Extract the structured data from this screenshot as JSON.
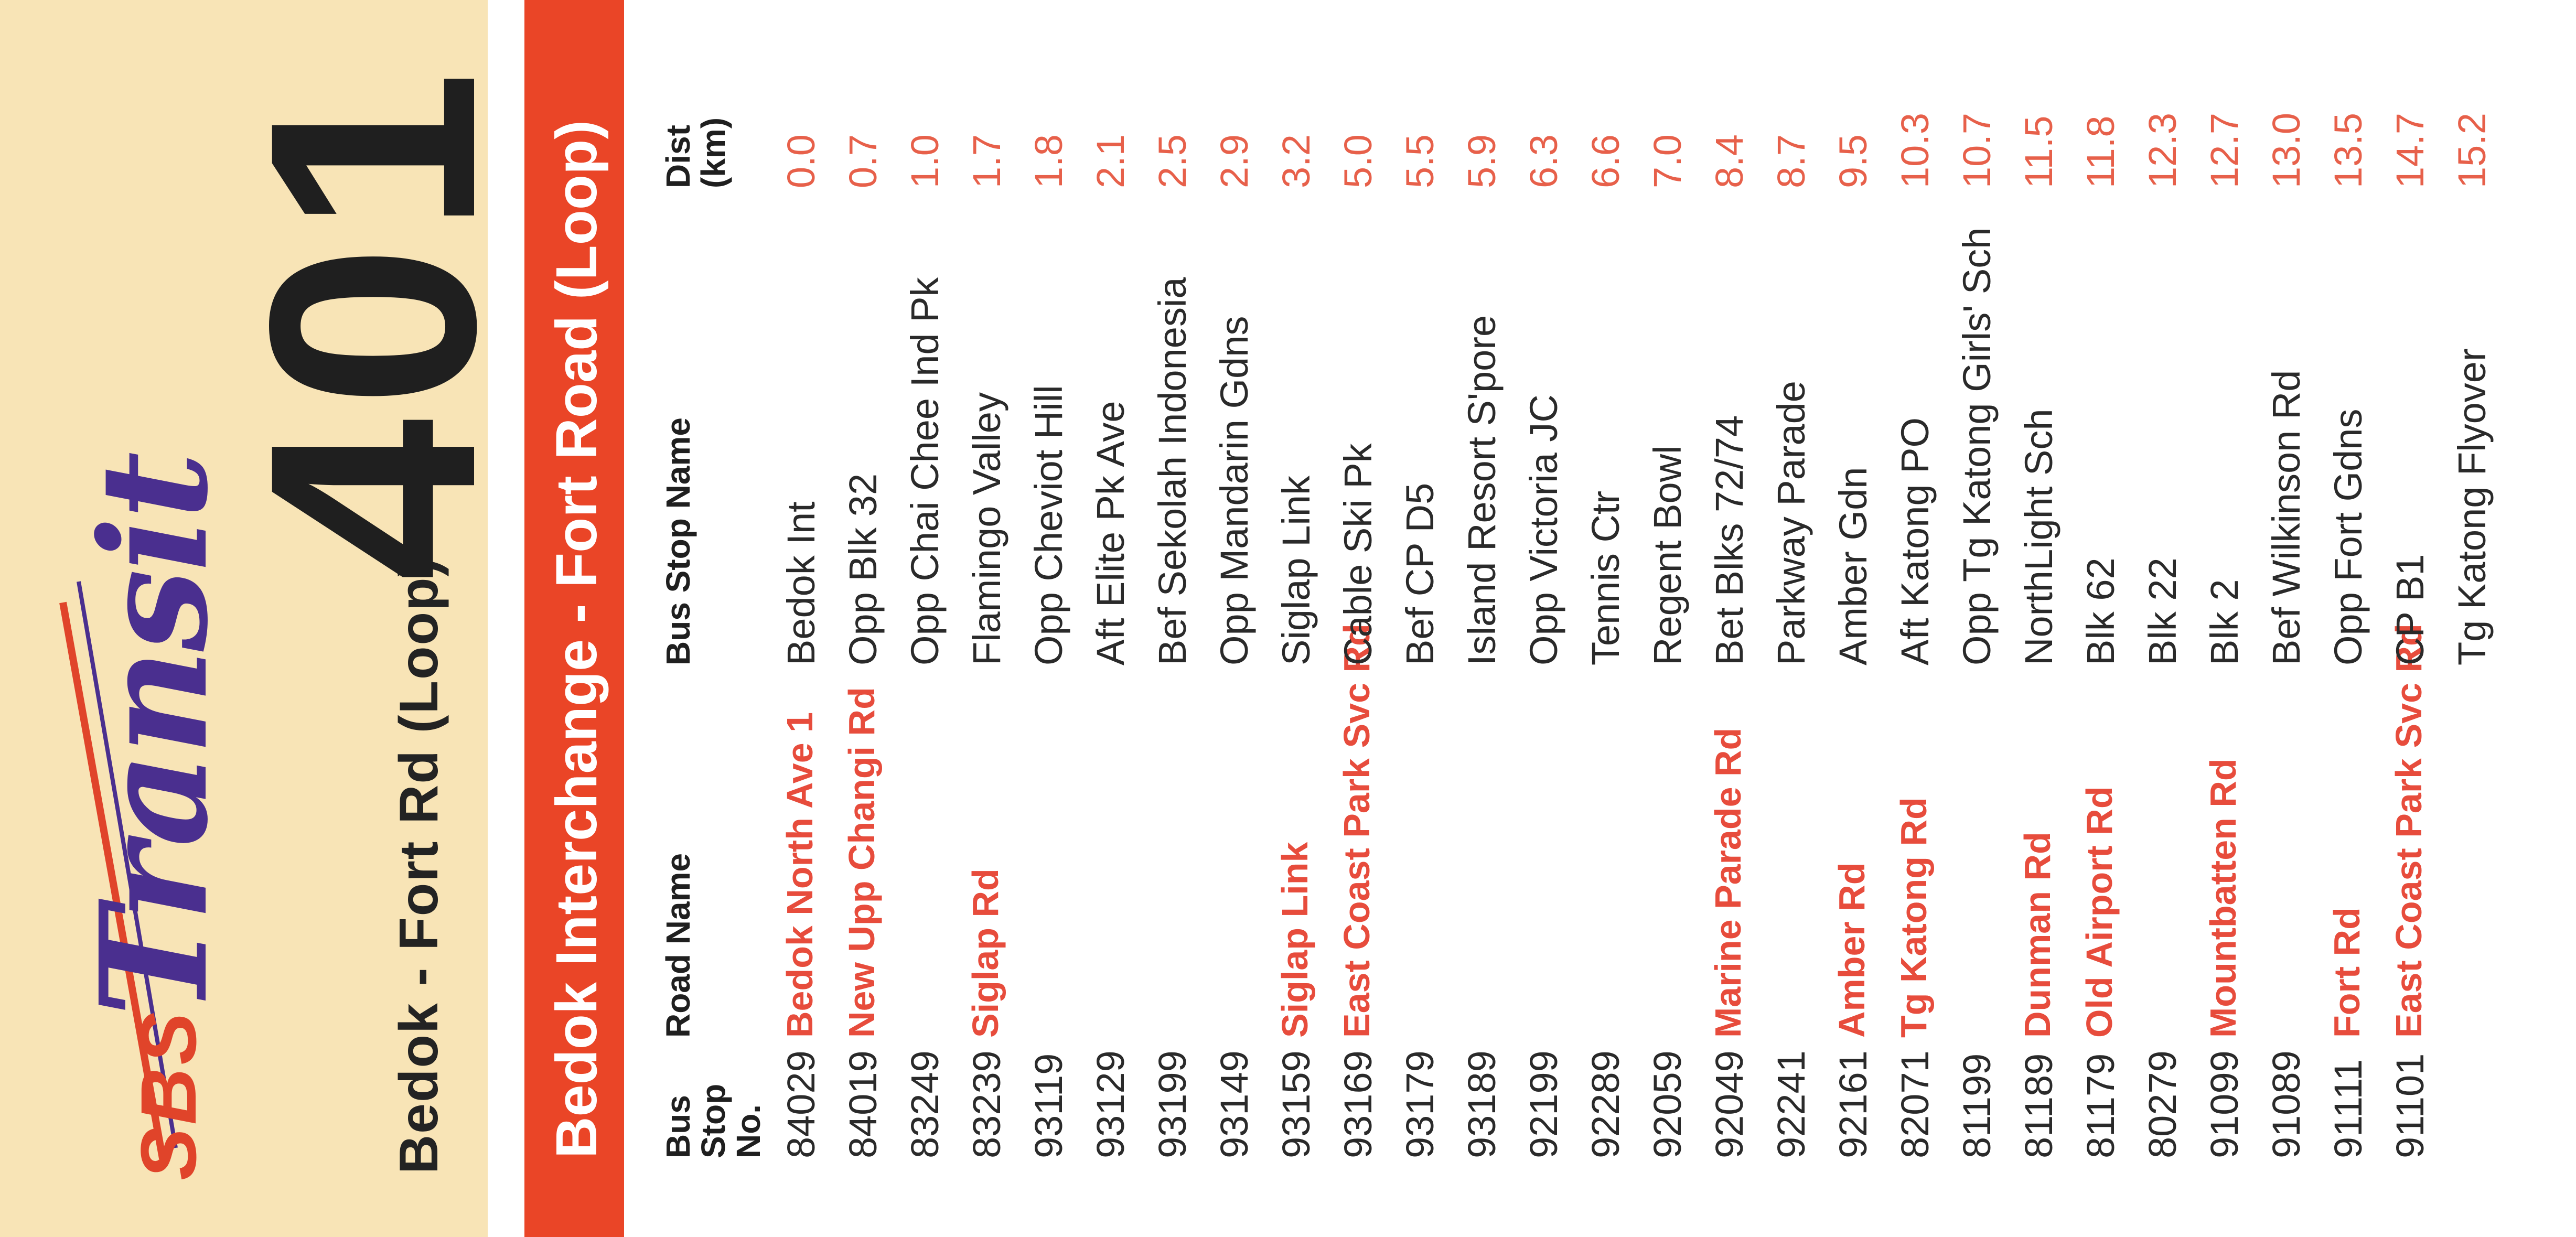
{
  "brand": {
    "sbs": "SBS",
    "transit": "Transit"
  },
  "route": {
    "name": "Bedok - Fort Rd (Loop)",
    "number": "401"
  },
  "banner": {
    "title": "Bedok Interchange - Fort Road (Loop)"
  },
  "table": {
    "headers": {
      "stop_no": "Bus Stop No.",
      "road": "Road Name",
      "stop_name": "Bus Stop Name",
      "dist": "Dist (km)"
    },
    "rows": [
      {
        "no": "84029",
        "road": "Bedok North Ave 1",
        "name": "Bedok Int",
        "dist": "0.0"
      },
      {
        "no": "84019",
        "road": "New Upp Changi Rd",
        "name": "Opp Blk 32",
        "dist": "0.7"
      },
      {
        "no": "83249",
        "road": "",
        "name": "Opp Chai Chee Ind Pk",
        "dist": "1.0"
      },
      {
        "no": "83239",
        "road": "Siglap Rd",
        "name": "Flamingo Valley",
        "dist": "1.7"
      },
      {
        "no": "93119",
        "road": "",
        "name": "Opp Cheviot Hill",
        "dist": "1.8"
      },
      {
        "no": "93129",
        "road": "",
        "name": "Aft Elite Pk Ave",
        "dist": "2.1"
      },
      {
        "no": "93199",
        "road": "",
        "name": "Bef Sekolah Indonesia",
        "dist": "2.5"
      },
      {
        "no": "93149",
        "road": "",
        "name": "Opp Mandarin Gdns",
        "dist": "2.9"
      },
      {
        "no": "93159",
        "road": "Siglap Link",
        "name": "Siglap Link",
        "dist": "3.2"
      },
      {
        "no": "93169",
        "road": "East Coast Park Svc Rd",
        "name": "Cable Ski Pk",
        "dist": "5.0"
      },
      {
        "no": "93179",
        "road": "",
        "name": "Bef CP D5",
        "dist": "5.5"
      },
      {
        "no": "93189",
        "road": "",
        "name": "Island Resort S'pore",
        "dist": "5.9"
      },
      {
        "no": "92199",
        "road": "",
        "name": "Opp Victoria JC",
        "dist": "6.3"
      },
      {
        "no": "92289",
        "road": "",
        "name": "Tennis Ctr",
        "dist": "6.6"
      },
      {
        "no": "92059",
        "road": "",
        "name": "Regent Bowl",
        "dist": "7.0"
      },
      {
        "no": "92049",
        "road": "Marine Parade Rd",
        "name": "Bet Blks 72/74",
        "dist": "8.4"
      },
      {
        "no": "92241",
        "road": "",
        "name": "Parkway Parade",
        "dist": "8.7"
      },
      {
        "no": "92161",
        "road": "Amber Rd",
        "name": "Amber Gdn",
        "dist": "9.5"
      },
      {
        "no": "82071",
        "road": "Tg Katong Rd",
        "name": "Aft Katong PO",
        "dist": "10.3"
      },
      {
        "no": "81199",
        "road": "",
        "name": "Opp Tg Katong Girls' Sch",
        "dist": "10.7"
      },
      {
        "no": "81189",
        "road": "Dunman Rd",
        "name": "NorthLight Sch",
        "dist": "11.5"
      },
      {
        "no": "81179",
        "road": "Old Airport Rd",
        "name": "Blk 62",
        "dist": "11.8"
      },
      {
        "no": "80279",
        "road": "",
        "name": "Blk 22",
        "dist": "12.3"
      },
      {
        "no": "91099",
        "road": "Mountbatten Rd",
        "name": "Blk 2",
        "dist": "12.7"
      },
      {
        "no": "91089",
        "road": "",
        "name": "Bef Wilkinson Rd",
        "dist": "13.0"
      },
      {
        "no": "91111",
        "road": "Fort Rd",
        "name": "Opp Fort Gdns",
        "dist": "13.5"
      },
      {
        "no": "91101",
        "road": "East Coast Park Svc Rd",
        "name": "CP B1",
        "dist": "14.7"
      },
      {
        "no": "",
        "road": "",
        "name": "Tg Katong Flyover",
        "dist": "15.2"
      }
    ]
  }
}
